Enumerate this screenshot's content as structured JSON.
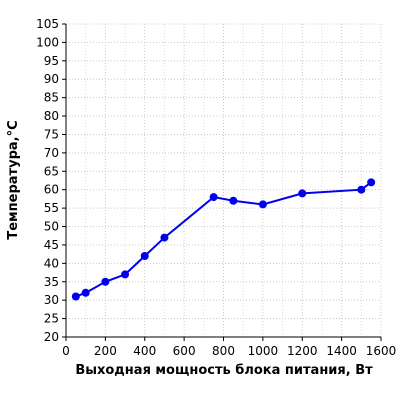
{
  "chart_data": {
    "type": "line",
    "title": "",
    "xlabel": "Выходная мощность блока питания, Вт",
    "ylabel": "Температура,°C",
    "xlim": [
      0,
      1600
    ],
    "ylim": [
      20,
      105
    ],
    "xticks": [
      0,
      200,
      400,
      600,
      800,
      1000,
      1200,
      1400,
      1600
    ],
    "yticks": [
      20,
      25,
      30,
      35,
      40,
      45,
      50,
      55,
      60,
      65,
      70,
      75,
      80,
      85,
      90,
      95,
      100,
      105
    ],
    "grid": true,
    "series": [
      {
        "color": "#0000ee",
        "points": [
          {
            "x": 50,
            "y": 31
          },
          {
            "x": 100,
            "y": 32
          },
          {
            "x": 200,
            "y": 35
          },
          {
            "x": 300,
            "y": 37
          },
          {
            "x": 400,
            "y": 42
          },
          {
            "x": 500,
            "y": 47
          },
          {
            "x": 750,
            "y": 58
          },
          {
            "x": 850,
            "y": 57
          },
          {
            "x": 1000,
            "y": 56
          },
          {
            "x": 1200,
            "y": 59
          },
          {
            "x": 1500,
            "y": 60
          },
          {
            "x": 1550,
            "y": 62
          }
        ]
      }
    ]
  }
}
